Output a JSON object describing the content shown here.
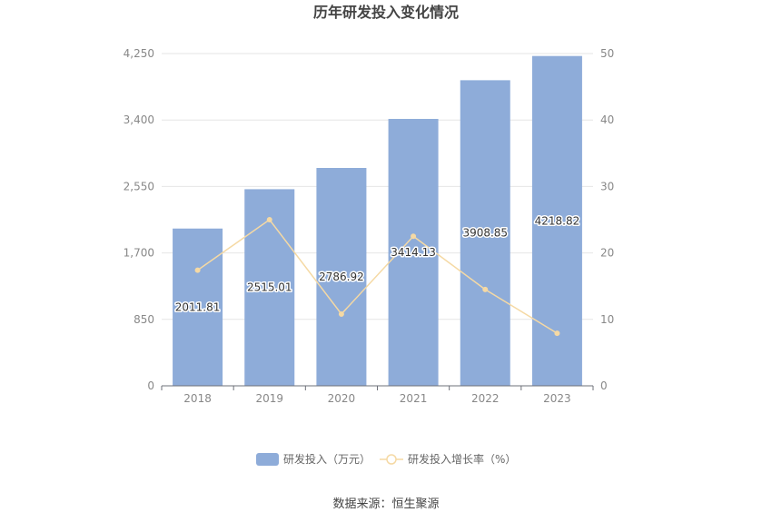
{
  "chart_data": {
    "type": "bar",
    "title": "历年研发投入变化情况",
    "categories": [
      "2018",
      "2019",
      "2020",
      "2021",
      "2022",
      "2023"
    ],
    "series": [
      {
        "name": "研发投入（万元）",
        "type": "bar",
        "axis": "left",
        "values": [
          2011.81,
          2515.01,
          2786.92,
          3414.13,
          3908.85,
          4218.82
        ],
        "labels": [
          "2011.81",
          "2515.01",
          "2786.92",
          "3414.13",
          "3908.85",
          "4218.82"
        ],
        "color": "#8eacd9"
      },
      {
        "name": "研发投入增长率（%）",
        "type": "line",
        "axis": "right",
        "values": [
          17.4,
          25.0,
          10.8,
          22.5,
          14.5,
          7.9
        ],
        "color": "#f5d9a4"
      }
    ],
    "left_axis": {
      "ylim": [
        0,
        4250
      ],
      "ticks": [
        "0",
        "850",
        "1,700",
        "2,550",
        "3,400",
        "4,250"
      ]
    },
    "right_axis": {
      "ylim": [
        0,
        50
      ],
      "ticks": [
        "0",
        "10",
        "20",
        "30",
        "40",
        "50"
      ]
    },
    "grid": true,
    "legend_position": "bottom"
  },
  "source_text": "数据来源：恒生聚源"
}
